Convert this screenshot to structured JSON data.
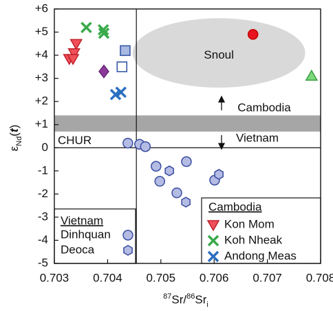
{
  "chart_data": {
    "type": "scatter",
    "x_label": [
      "87",
      "Sr/",
      "86",
      "Sr",
      "i"
    ],
    "y_label": [
      "ε",
      "Nd",
      "(",
      "t",
      ")"
    ],
    "xlim": [
      0.703,
      0.708
    ],
    "xticks": [
      0.703,
      0.704,
      0.705,
      0.706,
      0.707,
      0.708
    ],
    "ylim": [
      -5,
      6
    ],
    "yticks": [
      -5,
      -4,
      -3,
      -2,
      -1,
      0,
      {
        "value": 1,
        "label": "+1"
      },
      {
        "value": 2,
        "label": "+2"
      },
      {
        "value": 3,
        "label": "+3"
      },
      {
        "value": 4,
        "label": "+4"
      },
      {
        "value": 5,
        "label": "+5"
      },
      {
        "value": 6,
        "label": "+6"
      }
    ],
    "region": {
      "label": "Snoul",
      "center": [
        0.70609,
        4.1
      ],
      "radius": [
        0.00162,
        1.5
      ],
      "color": "#d9d9d9"
    },
    "band": {
      "y": [
        0.7,
        1.4
      ],
      "color": "#a6a6a6"
    },
    "hline": {
      "label": "CHUR",
      "y": 0
    },
    "vline": {
      "x": 0.70454
    },
    "arrow_labels": [
      "Cambodia",
      "Vietnam"
    ],
    "groups": [
      {
        "title": "Cambodia",
        "corner": "lower right",
        "series": [
          {
            "name": "Kon Mom",
            "marker": "triangle-down",
            "color": "#f0505a",
            "edge": "#c0202a",
            "x": [
              0.70341,
              0.70337,
              0.70328,
              0.70335
            ],
            "y": [
              4.5,
              4.1,
              3.85,
              3.85
            ]
          },
          {
            "name": "Koh Nheak",
            "marker": "x",
            "color": "#3aaa4a",
            "edge": "#3aaa4a",
            "x": [
              0.7036,
              0.70392,
              0.70393
            ],
            "y": [
              5.2,
              5.1,
              4.95
            ]
          },
          {
            "name": "Andong Meas",
            "marker": "x",
            "color": "#2a6fc0",
            "edge": "#2a6fc0",
            "x": [
              0.70415,
              0.70425
            ],
            "y": [
              2.3,
              2.4
            ]
          }
        ]
      },
      {
        "title": "Vietnam",
        "corner": "lower left",
        "series": [
          {
            "name": "Dinhquan",
            "marker": "circle",
            "color": "#b4bce4",
            "edge": "#3a4ca0",
            "x": [
              0.70438,
              0.7046,
              0.70471,
              0.70491,
              0.70498,
              0.70548,
              0.7053,
              0.70601
            ],
            "y": [
              0.2,
              0.15,
              0.05,
              -0.8,
              -1.45,
              -0.6,
              -1.95,
              -1.4
            ]
          },
          {
            "name": "Deoca",
            "marker": "hexagon",
            "color": "#b4bce4",
            "edge": "#3a4ca0",
            "x": [
              0.70516,
              0.70547,
              0.70609
            ],
            "y": [
              -1.0,
              -2.35,
              -1.15
            ]
          }
        ]
      },
      {
        "series": [
          {
            "marker": "circle",
            "color": "#e8141e",
            "edge": "#c00000",
            "x": [
              0.70673
            ],
            "y": [
              4.9
            ]
          },
          {
            "marker": "triangle-up",
            "color": "#7dd87d",
            "edge": "#3aa040",
            "x": [
              0.70783
            ],
            "y": [
              3.1
            ]
          },
          {
            "marker": "diamond",
            "color": "#8b3a9a",
            "edge": "#6a2a7a",
            "x": [
              0.70393
            ],
            "y": [
              3.3
            ]
          },
          {
            "marker": "square",
            "color": "#a8b8e0",
            "edge": "#2a4fa0",
            "x": [
              0.70433
            ],
            "y": [
              4.2
            ]
          },
          {
            "marker": "square",
            "color": "#ffffff",
            "edge": "#2a4fa0",
            "x": [
              0.70427
            ],
            "y": [
              3.5
            ]
          }
        ]
      }
    ]
  }
}
